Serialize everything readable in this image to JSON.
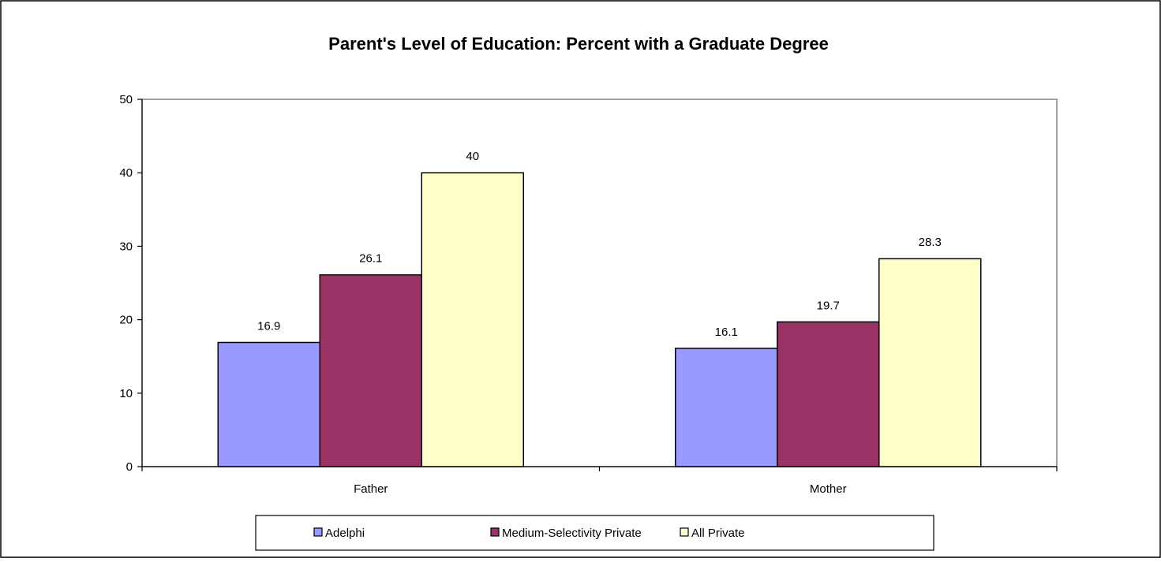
{
  "chart_data": {
    "type": "bar",
    "title": "Parent's Level of Education: Percent with a Graduate Degree",
    "xlabel": "",
    "ylabel": "",
    "categories": [
      "Father",
      "Mother"
    ],
    "series": [
      {
        "name": "Adelphi",
        "values": [
          16.9,
          16.1
        ],
        "color": "#9999ff"
      },
      {
        "name": "Medium-Selectivity Private",
        "values": [
          26.1,
          19.7
        ],
        "color": "#993366"
      },
      {
        "name": "All Private",
        "values": [
          40,
          28.3
        ],
        "color": "#ffffcc"
      }
    ],
    "ylim": [
      0,
      50
    ],
    "yticks": [
      "0",
      "10",
      "20",
      "30",
      "40",
      "50"
    ],
    "data_labels": [
      [
        "16.9",
        "16.1"
      ],
      [
        "26.1",
        "19.7"
      ],
      [
        "40",
        "28.3"
      ]
    ],
    "grid": false,
    "legend_position": "bottom"
  }
}
